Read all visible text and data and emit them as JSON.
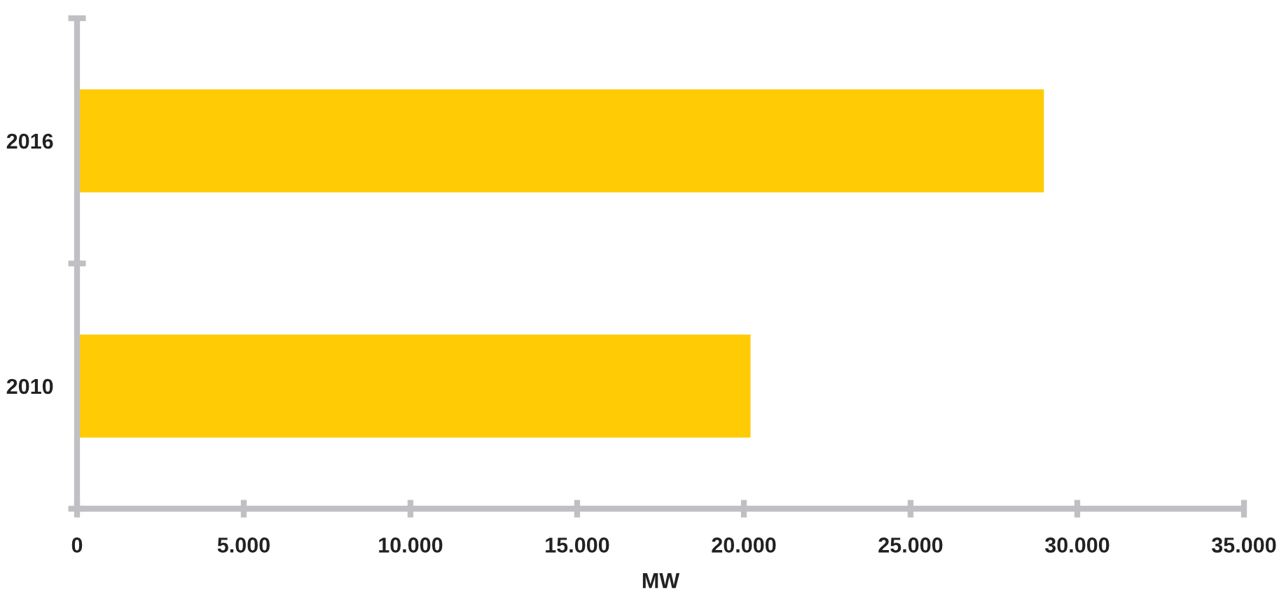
{
  "chart_data": {
    "type": "bar",
    "orientation": "horizontal",
    "categories": [
      "2016",
      "2010"
    ],
    "values": [
      29000,
      20200
    ],
    "color": "#fecb05",
    "xlabel": "MW",
    "xlim": [
      0,
      35000
    ],
    "xticks": [
      0,
      {
        "value": 5000,
        "label": "5.000"
      },
      {
        "value": 10000,
        "label": "10.000"
      },
      {
        "value": 15000,
        "label": "15.000"
      },
      {
        "value": 20000,
        "label": "20.000"
      },
      {
        "value": 25000,
        "label": "25.000"
      },
      {
        "value": 30000,
        "label": "30.000"
      },
      {
        "value": 35000,
        "label": "35.000"
      }
    ]
  }
}
